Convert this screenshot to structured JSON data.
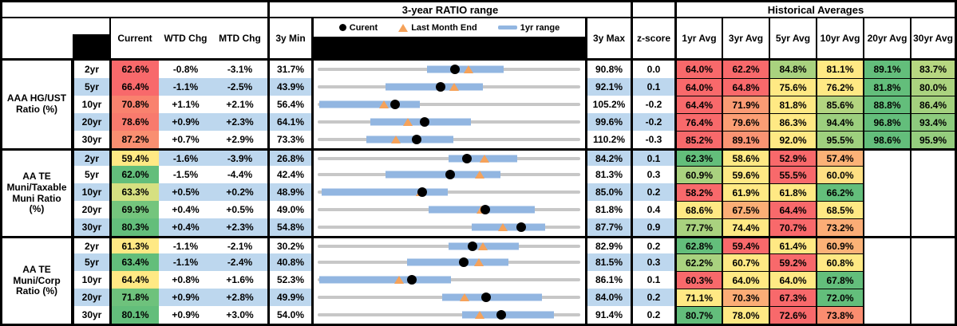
{
  "header": {
    "ratio_range_title": "3-year RATIO range",
    "historical_title": "Historical Averages",
    "col_current": "Current",
    "col_wtd": "WTD Chg",
    "col_mtd": "MTD Chg",
    "col_3y_min": "3y Min",
    "col_3y_max": "3y Max",
    "col_zscore": "z-score",
    "avg_cols": [
      "1yr Avg",
      "3yr Avg",
      "5yr Avg",
      "10yr Avg",
      "20yr Avg",
      "30yr Avg"
    ],
    "legend": [
      {
        "marker": "dot",
        "label": "Curent"
      },
      {
        "marker": "triangle",
        "label": "Last Month End"
      },
      {
        "marker": "bar",
        "label": "1yr range"
      }
    ]
  },
  "colors": {
    "stripe": "#BDD7EE",
    "white": "#FFFFFF",
    "line_gray": "#C7C7C7",
    "bar_blue": "#92B6E1",
    "marker_orange": "#F5A25A",
    "heat_red": "#F8696B",
    "heat_yellow": "#FFE984",
    "heat_green": "#63BE7B",
    "black": "#000000"
  },
  "chart_data": {
    "type": "table",
    "description": "Municipal ratio table: current ratios, weekly/monthly changes, 3-year min/max with inline range charts (gray = 3y range, blue bar = 1yr range, black dot = Current, orange triangle = Last Month End), z-scores and historical averages with red-yellow-green heatmap shading. All values in percent.",
    "row_chart_semantics": {
      "gray_line": "3y Min to 3y Max",
      "blue_bar": "1yr range",
      "dot": "Curent",
      "triangle": "Last Month End"
    },
    "groups": [
      {
        "label": "AAA HG/UST\nRatio (%)",
        "rows": [
          {
            "tenor": "2yr",
            "current": {
              "v": "62.6%",
              "bg": "#F8696B"
            },
            "wtd": "-0.8%",
            "mtd": "-3.1%",
            "min": "31.7%",
            "max": "90.8%",
            "z": "0.0",
            "chart": {
              "min": 31.7,
              "max": 90.8,
              "bar": [
                56.3,
                73.5
              ],
              "tri": 65.7,
              "dot": 62.6
            },
            "avgs": [
              {
                "v": "64.0%",
                "bg": "#F8696B"
              },
              {
                "v": "62.2%",
                "bg": "#F8696B"
              },
              {
                "v": "84.8%",
                "bg": "#A9D27F"
              },
              {
                "v": "81.1%",
                "bg": "#FFE984"
              },
              {
                "v": "89.1%",
                "bg": "#63BE7B"
              },
              {
                "v": "83.7%",
                "bg": "#B7D781"
              }
            ]
          },
          {
            "tenor": "5yr",
            "current": {
              "v": "66.4%",
              "bg": "#F8696B"
            },
            "wtd": "-1.1%",
            "mtd": "-2.5%",
            "min": "43.9%",
            "max": "92.1%",
            "z": "0.1",
            "chart": {
              "min": 43.9,
              "max": 92.1,
              "bar": [
                56.3,
                74.3
              ],
              "tri": 68.9,
              "dot": 66.4
            },
            "avgs": [
              {
                "v": "64.0%",
                "bg": "#F8696B"
              },
              {
                "v": "64.8%",
                "bg": "#F8696B"
              },
              {
                "v": "75.6%",
                "bg": "#FFE984"
              },
              {
                "v": "76.2%",
                "bg": "#FFE984"
              },
              {
                "v": "81.8%",
                "bg": "#63BE7B"
              },
              {
                "v": "80.0%",
                "bg": "#ABD37F"
              }
            ]
          },
          {
            "tenor": "10yr",
            "current": {
              "v": "70.8%",
              "bg": "#F9826E"
            },
            "wtd": "+1.1%",
            "mtd": "+2.1%",
            "min": "56.4%",
            "max": "105.2%",
            "z": "-0.2",
            "chart": {
              "min": 56.4,
              "max": 105.2,
              "bar": [
                56.7,
                75.4
              ],
              "tri": 68.7,
              "dot": 70.8
            },
            "avgs": [
              {
                "v": "64.4%",
                "bg": "#F8696B"
              },
              {
                "v": "71.9%",
                "bg": "#FA9B74"
              },
              {
                "v": "81.8%",
                "bg": "#FFE984"
              },
              {
                "v": "85.6%",
                "bg": "#B3D580"
              },
              {
                "v": "88.8%",
                "bg": "#63BE7B"
              },
              {
                "v": "86.4%",
                "bg": "#A4D17E"
              }
            ]
          },
          {
            "tenor": "20yr",
            "current": {
              "v": "78.6%",
              "bg": "#F87A6D"
            },
            "wtd": "+0.9%",
            "mtd": "+2.3%",
            "min": "64.1%",
            "max": "99.6%",
            "z": "-0.2",
            "chart": {
              "min": 64.1,
              "max": 99.6,
              "bar": [
                71.2,
                84.8
              ],
              "tri": 76.3,
              "dot": 78.6
            },
            "avgs": [
              {
                "v": "76.4%",
                "bg": "#F8696B"
              },
              {
                "v": "79.6%",
                "bg": "#FB9E74"
              },
              {
                "v": "86.3%",
                "bg": "#FFE984"
              },
              {
                "v": "94.4%",
                "bg": "#9CCF7E"
              },
              {
                "v": "96.8%",
                "bg": "#63BE7B"
              },
              {
                "v": "93.4%",
                "bg": "#8DCB7D"
              }
            ]
          },
          {
            "tenor": "30yr",
            "current": {
              "v": "87.2%",
              "bg": "#F98F71"
            },
            "wtd": "+0.7%",
            "mtd": "+2.9%",
            "min": "73.3%",
            "max": "110.2%",
            "z": "-0.3",
            "chart": {
              "min": 73.3,
              "max": 110.2,
              "bar": [
                80.1,
                92.4
              ],
              "tri": 84.3,
              "dot": 87.2
            },
            "avgs": [
              {
                "v": "85.2%",
                "bg": "#F8696B"
              },
              {
                "v": "89.1%",
                "bg": "#FA9473"
              },
              {
                "v": "92.0%",
                "bg": "#FFE984"
              },
              {
                "v": "95.5%",
                "bg": "#9ED07E"
              },
              {
                "v": "98.6%",
                "bg": "#63BE7B"
              },
              {
                "v": "95.9%",
                "bg": "#95CD7E"
              }
            ]
          }
        ]
      },
      {
        "label": "AA TE\nMuni/Taxable\nMuni Ratio\n(%)",
        "rows": [
          {
            "tenor": "2yr",
            "current": {
              "v": "59.4%",
              "bg": "#FFE984"
            },
            "wtd": "-1.6%",
            "mtd": "-3.9%",
            "min": "26.8%",
            "max": "84.2%",
            "z": "0.1",
            "chart": {
              "min": 26.8,
              "max": 84.2,
              "bar": [
                55.4,
                70.4
              ],
              "tri": 63.3,
              "dot": 59.4
            },
            "avgs": [
              {
                "v": "62.3%",
                "bg": "#63BE7B"
              },
              {
                "v": "58.6%",
                "bg": "#FFE984"
              },
              {
                "v": "52.9%",
                "bg": "#F8696B"
              },
              {
                "v": "57.4%",
                "bg": "#FBB277"
              },
              null,
              null
            ]
          },
          {
            "tenor": "5yr",
            "current": {
              "v": "62.0%",
              "bg": "#63BE7B"
            },
            "wtd": "-1.5%",
            "mtd": "-4.4%",
            "min": "42.4%",
            "max": "81.3%",
            "z": "0.3",
            "chart": {
              "min": 42.4,
              "max": 81.3,
              "bar": [
                52.4,
                69.5
              ],
              "tri": 66.4,
              "dot": 62.0
            },
            "avgs": [
              {
                "v": "60.9%",
                "bg": "#A9D27F"
              },
              {
                "v": "59.6%",
                "bg": "#FFE984"
              },
              {
                "v": "55.5%",
                "bg": "#F8696B"
              },
              {
                "v": "60.0%",
                "bg": "#FFE083"
              },
              null,
              null
            ]
          },
          {
            "tenor": "10yr",
            "current": {
              "v": "63.3%",
              "bg": "#D6E081"
            },
            "wtd": "+0.5%",
            "mtd": "+0.2%",
            "min": "48.9%",
            "max": "85.0%",
            "z": "0.2",
            "chart": {
              "min": 48.9,
              "max": 85.0,
              "bar": [
                49.5,
                66.8
              ],
              "tri": 63.1,
              "dot": 63.3
            },
            "avgs": [
              {
                "v": "58.2%",
                "bg": "#F8696B"
              },
              {
                "v": "61.9%",
                "bg": "#FFE984"
              },
              {
                "v": "61.8%",
                "bg": "#FFE984"
              },
              {
                "v": "66.2%",
                "bg": "#63BE7B"
              },
              null,
              null
            ]
          },
          {
            "tenor": "20yr",
            "current": {
              "v": "69.9%",
              "bg": "#74C57D"
            },
            "wtd": "+0.4%",
            "mtd": "+0.5%",
            "min": "49.0%",
            "max": "81.8%",
            "z": "0.4",
            "chart": {
              "min": 49.0,
              "max": 81.8,
              "bar": [
                62.9,
                76.1
              ],
              "tri": 69.4,
              "dot": 69.9
            },
            "avgs": [
              {
                "v": "68.6%",
                "bg": "#FFE984"
              },
              {
                "v": "67.5%",
                "bg": "#FBAE76"
              },
              {
                "v": "64.4%",
                "bg": "#F8696B"
              },
              {
                "v": "68.5%",
                "bg": "#FFE984"
              },
              null,
              null
            ]
          },
          {
            "tenor": "30yr",
            "current": {
              "v": "80.3%",
              "bg": "#63BE7B"
            },
            "wtd": "+0.4%",
            "mtd": "+2.3%",
            "min": "54.8%",
            "max": "87.7%",
            "z": "0.9",
            "chart": {
              "min": 54.8,
              "max": 87.7,
              "bar": [
                74.1,
                83.3
              ],
              "tri": 78.0,
              "dot": 80.3
            },
            "avgs": [
              {
                "v": "77.7%",
                "bg": "#A9D27F"
              },
              {
                "v": "74.4%",
                "bg": "#FFE984"
              },
              {
                "v": "70.7%",
                "bg": "#F8696B"
              },
              {
                "v": "73.2%",
                "bg": "#FBAD76"
              },
              null,
              null
            ]
          }
        ]
      },
      {
        "label": "AA TE\nMuni/Corp\nRatio (%)",
        "rows": [
          {
            "tenor": "2yr",
            "current": {
              "v": "61.3%",
              "bg": "#FFE984"
            },
            "wtd": "-1.1%",
            "mtd": "-2.1%",
            "min": "30.2%",
            "max": "82.9%",
            "z": "0.2",
            "chart": {
              "min": 30.2,
              "max": 82.9,
              "bar": [
                56.4,
                70.5
              ],
              "tri": 63.4,
              "dot": 61.3
            },
            "avgs": [
              {
                "v": "62.8%",
                "bg": "#63BE7B"
              },
              {
                "v": "59.4%",
                "bg": "#F8696B"
              },
              {
                "v": "61.4%",
                "bg": "#FFE984"
              },
              {
                "v": "60.9%",
                "bg": "#FBB277"
              },
              null,
              null
            ]
          },
          {
            "tenor": "5yr",
            "current": {
              "v": "63.4%",
              "bg": "#63BE7B"
            },
            "wtd": "-1.1%",
            "mtd": "-2.4%",
            "min": "40.8%",
            "max": "81.5%",
            "z": "0.3",
            "chart": {
              "min": 40.8,
              "max": 81.5,
              "bar": [
                54.7,
                70.4
              ],
              "tri": 65.8,
              "dot": 63.4
            },
            "avgs": [
              {
                "v": "62.2%",
                "bg": "#A9D27F"
              },
              {
                "v": "60.7%",
                "bg": "#FFE984"
              },
              {
                "v": "59.2%",
                "bg": "#F8696B"
              },
              {
                "v": "60.8%",
                "bg": "#FFE984"
              },
              null,
              null
            ]
          },
          {
            "tenor": "10yr",
            "current": {
              "v": "64.4%",
              "bg": "#FFE984"
            },
            "wtd": "+0.8%",
            "mtd": "+1.6%",
            "min": "52.3%",
            "max": "86.1%",
            "z": "0.1",
            "chart": {
              "min": 52.3,
              "max": 86.1,
              "bar": [
                52.5,
                69.5
              ],
              "tri": 62.8,
              "dot": 64.4
            },
            "avgs": [
              {
                "v": "60.3%",
                "bg": "#F8696B"
              },
              {
                "v": "64.0%",
                "bg": "#FFE984"
              },
              {
                "v": "64.0%",
                "bg": "#FFE984"
              },
              {
                "v": "67.8%",
                "bg": "#63BE7B"
              },
              null,
              null
            ]
          },
          {
            "tenor": "20yr",
            "current": {
              "v": "71.8%",
              "bg": "#6EC27C"
            },
            "wtd": "+0.9%",
            "mtd": "+2.8%",
            "min": "49.9%",
            "max": "84.0%",
            "z": "0.2",
            "chart": {
              "min": 49.9,
              "max": 84.0,
              "bar": [
                66.1,
                79.0
              ],
              "tri": 69.0,
              "dot": 71.8
            },
            "avgs": [
              {
                "v": "71.1%",
                "bg": "#FFE984"
              },
              {
                "v": "70.3%",
                "bg": "#FBAD76"
              },
              {
                "v": "67.3%",
                "bg": "#F8696B"
              },
              {
                "v": "72.0%",
                "bg": "#63BE7B"
              },
              null,
              null
            ]
          },
          {
            "tenor": "30yr",
            "current": {
              "v": "80.1%",
              "bg": "#63BE7B"
            },
            "wtd": "+0.9%",
            "mtd": "+3.0%",
            "min": "54.0%",
            "max": "91.4%",
            "z": "0.2",
            "chart": {
              "min": 54.0,
              "max": 91.4,
              "bar": [
                74.6,
                87.7
              ],
              "tri": 77.1,
              "dot": 80.1
            },
            "avgs": [
              {
                "v": "80.7%",
                "bg": "#63BE7B"
              },
              {
                "v": "78.0%",
                "bg": "#FFE984"
              },
              {
                "v": "72.6%",
                "bg": "#F8696B"
              },
              {
                "v": "73.8%",
                "bg": "#FA8D70"
              },
              null,
              null
            ]
          }
        ]
      }
    ]
  }
}
